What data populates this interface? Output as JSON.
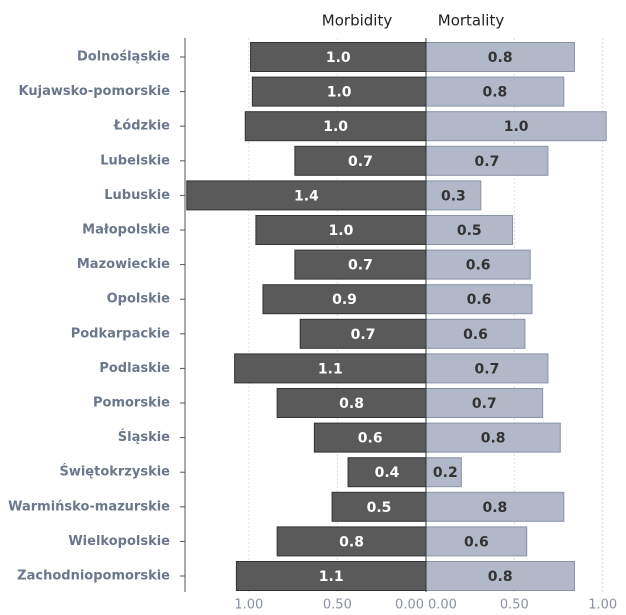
{
  "chart_data": [
    {
      "type": "bar",
      "orientation": "horizontal",
      "title": "Morbidity",
      "x_inverted": true,
      "categories": [
        "Dolnośląskie",
        "Kujawsko-pomorskie",
        "Łódzkie",
        "Lubelskie",
        "Lubuskie",
        "Małopolskie",
        "Mazowieckie",
        "Opolskie",
        "Podkarpackie",
        "Podlaskie",
        "Pomorskie",
        "Śląskie",
        "Świętokrzyskie",
        "Warmińsko-mazurskie",
        "Wielkopolskie",
        "Zachodniopomorskie"
      ],
      "values": [
        0.99,
        0.98,
        1.02,
        0.74,
        1.35,
        0.96,
        0.74,
        0.92,
        0.71,
        1.08,
        0.84,
        0.63,
        0.44,
        0.53,
        0.84,
        1.07
      ],
      "value_labels": [
        "1.0",
        "1.0",
        "1.0",
        "0.7",
        "1.4",
        "1.0",
        "0.7",
        "0.9",
        "0.7",
        "1.1",
        "0.8",
        "0.6",
        "0.4",
        "0.5",
        "0.8",
        "1.1"
      ],
      "color": "#5a5a5a",
      "xlim": [
        0,
        1.36
      ],
      "xticks": [
        {
          "value": 1,
          "label": "1.00"
        },
        {
          "value": 0.5,
          "label": "0.50"
        },
        {
          "value": 0,
          "label": "0.00"
        }
      ],
      "grid": true
    },
    {
      "type": "bar",
      "orientation": "horizontal",
      "title": "Mortality",
      "x_inverted": false,
      "values": [
        0.84,
        0.78,
        1.02,
        0.69,
        0.31,
        0.49,
        0.59,
        0.6,
        0.56,
        0.69,
        0.66,
        0.76,
        0.2,
        0.78,
        0.57,
        0.84
      ],
      "value_labels": [
        "0.8",
        "0.8",
        "1.0",
        "0.7",
        "0.3",
        "0.5",
        "0.6",
        "0.6",
        "0.6",
        "0.7",
        "0.7",
        "0.8",
        "0.2",
        "0.8",
        "0.6",
        "0.8"
      ],
      "color": "#b1b8c7",
      "xlim": [
        0,
        1.03
      ],
      "xticks": [
        {
          "value": 0,
          "label": "0.00"
        },
        {
          "value": 0.5,
          "label": "0.50"
        },
        {
          "value": 1,
          "label": "1.00"
        }
      ],
      "grid": true
    }
  ]
}
